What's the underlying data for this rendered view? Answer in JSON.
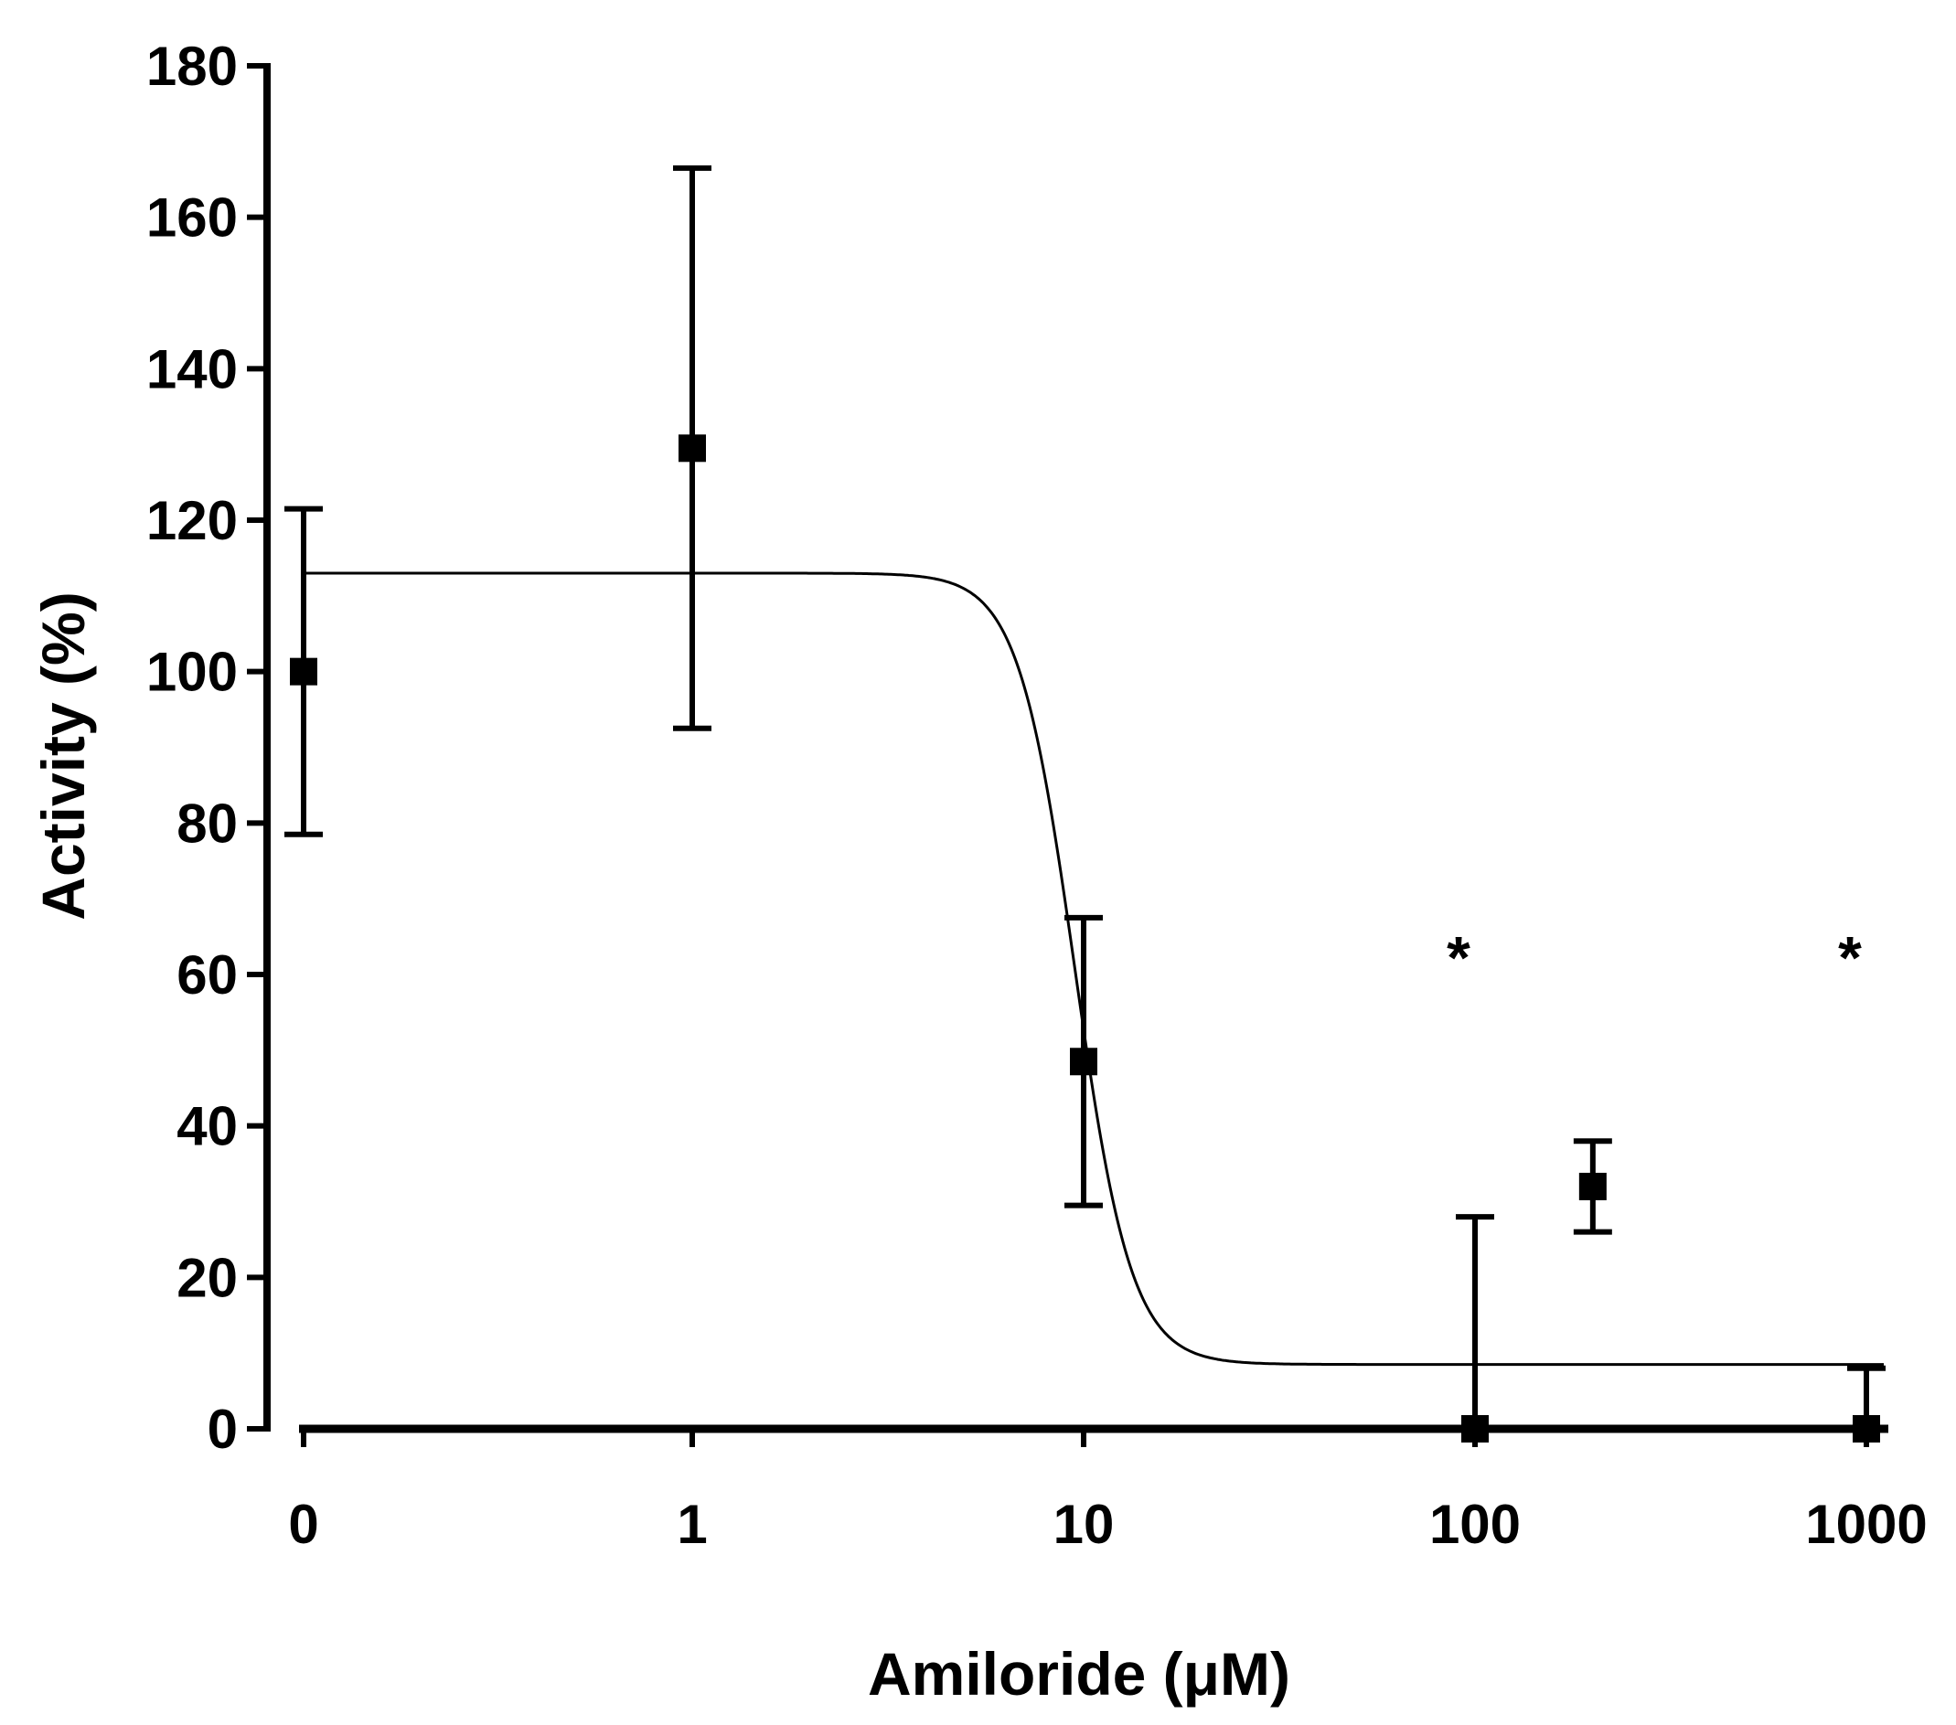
{
  "chart_data": {
    "type": "scatter",
    "title": "",
    "xlabel": "Amiloride (μM)",
    "ylabel": "Activity (%)",
    "x_scale": "log",
    "x_ticks": [
      "0",
      "1",
      "10",
      "100",
      "1000"
    ],
    "y_ticks": [
      "0",
      "20",
      "40",
      "60",
      "80",
      "100",
      "120",
      "140",
      "160",
      "180"
    ],
    "ylim": [
      0,
      180
    ],
    "grid": false,
    "legend": "none",
    "color": "#000000",
    "series": [
      {
        "marker": "square",
        "points": [
          {
            "x": "0",
            "y": 100,
            "err_low": 78.5,
            "err_high": 121.5
          },
          {
            "x": 1,
            "y": 129.5,
            "err_low": 92.5,
            "err_high": 166.5
          },
          {
            "x": 10,
            "y": 48.5,
            "err_low": 29.5,
            "err_high": 67.5
          },
          {
            "x": 100,
            "y": 0,
            "err_low": 0,
            "err_high": 28
          },
          {
            "x": 200,
            "y": 32,
            "err_low": 26,
            "err_high": 38
          },
          {
            "x": 1000,
            "y": 0,
            "err_low": 0,
            "err_high": 8
          }
        ]
      }
    ],
    "fit_curve": {
      "type": "sigmoidal dose-response",
      "top": 113,
      "bottom": 8.5,
      "ic50": 9.5,
      "hill_slope": 6
    },
    "annotations": [
      {
        "text": "*",
        "x": 100,
        "y": 65
      },
      {
        "text": "*",
        "x": 1000,
        "y": 65
      }
    ]
  }
}
